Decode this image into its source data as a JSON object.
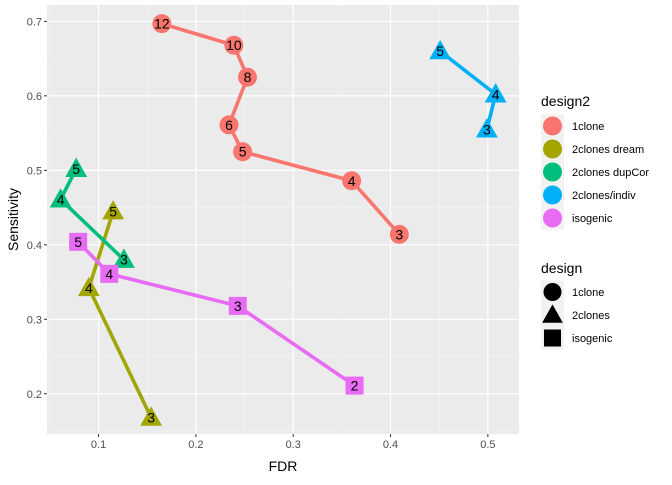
{
  "chart_data": {
    "type": "scatter",
    "xlabel": "FDR",
    "ylabel": "Sensitivity",
    "xlim": [
      0.047,
      0.532
    ],
    "ylim": [
      0.146,
      0.722
    ],
    "x_ticks": [
      0.1,
      0.2,
      0.3,
      0.4,
      0.5
    ],
    "y_ticks": [
      0.2,
      0.3,
      0.4,
      0.5,
      0.6,
      0.7
    ],
    "x_tick_labels": [
      "0.1",
      "0.2",
      "0.3",
      "0.4",
      "0.5"
    ],
    "y_tick_labels": [
      "0.2",
      "0.3",
      "0.4",
      "0.5",
      "0.6",
      "0.7"
    ],
    "grid": true,
    "legend_placement": "right",
    "color_legend": {
      "title": "design2",
      "entries": [
        {
          "label": "1clone",
          "color": "#F8766D"
        },
        {
          "label": "2clones dream",
          "color": "#A3A500"
        },
        {
          "label": "2clones dupCor",
          "color": "#00BF7D"
        },
        {
          "label": "2clones/indiv",
          "color": "#00B0F6"
        },
        {
          "label": "isogenic",
          "color": "#E76BF3"
        }
      ]
    },
    "shape_legend": {
      "title": "design",
      "entries": [
        {
          "label": "1clone",
          "shape": "circle"
        },
        {
          "label": "2clones",
          "shape": "triangle"
        },
        {
          "label": "isogenic",
          "shape": "square"
        }
      ]
    },
    "series": [
      {
        "color": "#F8766D",
        "shape": "circle",
        "points": [
          {
            "x": 0.165,
            "y": 0.697,
            "label": "12"
          },
          {
            "x": 0.239,
            "y": 0.668,
            "label": "10"
          },
          {
            "x": 0.253,
            "y": 0.625,
            "label": "8"
          },
          {
            "x": 0.234,
            "y": 0.561,
            "label": "6"
          },
          {
            "x": 0.248,
            "y": 0.525,
            "label": "5"
          },
          {
            "x": 0.36,
            "y": 0.486,
            "label": "4"
          },
          {
            "x": 0.409,
            "y": 0.414,
            "label": "3"
          }
        ]
      },
      {
        "color": "#A3A500",
        "shape": "triangle",
        "points": [
          {
            "x": 0.115,
            "y": 0.445,
            "label": "5"
          },
          {
            "x": 0.09,
            "y": 0.342,
            "label": "4"
          },
          {
            "x": 0.154,
            "y": 0.168,
            "label": "3"
          }
        ]
      },
      {
        "color": "#00BF7D",
        "shape": "triangle",
        "points": [
          {
            "x": 0.077,
            "y": 0.502,
            "label": "5"
          },
          {
            "x": 0.061,
            "y": 0.461,
            "label": "4"
          },
          {
            "x": 0.126,
            "y": 0.38,
            "label": "3"
          }
        ]
      },
      {
        "color": "#00B0F6",
        "shape": "triangle",
        "points": [
          {
            "x": 0.451,
            "y": 0.66,
            "label": "5"
          },
          {
            "x": 0.508,
            "y": 0.602,
            "label": "4"
          },
          {
            "x": 0.499,
            "y": 0.555,
            "label": "3"
          }
        ]
      },
      {
        "color": "#E76BF3",
        "shape": "square",
        "points": [
          {
            "x": 0.079,
            "y": 0.404,
            "label": "5"
          },
          {
            "x": 0.111,
            "y": 0.361,
            "label": "4"
          },
          {
            "x": 0.243,
            "y": 0.318,
            "label": "3"
          },
          {
            "x": 0.363,
            "y": 0.211,
            "label": "2"
          }
        ]
      }
    ]
  }
}
